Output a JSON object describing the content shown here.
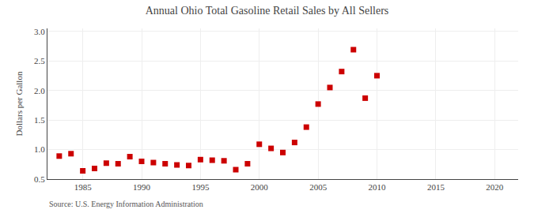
{
  "chart_data": {
    "type": "scatter",
    "title": "Annual Ohio Total Gasoline Retail Sales by All Sellers",
    "ylabel": "Dollars per Gallon",
    "annotations": [
      "Source: U.S. Energy Information Administration"
    ],
    "x": [
      1983,
      1984,
      1985,
      1986,
      1987,
      1988,
      1989,
      1990,
      1991,
      1992,
      1993,
      1994,
      1995,
      1996,
      1997,
      1998,
      1999,
      2000,
      2001,
      2002,
      2003,
      2004,
      2005,
      2006,
      2007,
      2008,
      2009,
      2010
    ],
    "values": [
      0.89,
      0.93,
      0.64,
      0.68,
      0.77,
      0.76,
      0.88,
      0.8,
      0.78,
      0.76,
      0.74,
      0.73,
      0.83,
      0.82,
      0.81,
      0.66,
      0.76,
      1.09,
      1.02,
      0.95,
      1.12,
      1.38,
      1.77,
      2.05,
      2.32,
      2.69,
      1.87,
      2.25
    ],
    "color": "#cc0000",
    "marker": "square",
    "xlim": [
      1982,
      2022
    ],
    "ylim": [
      0.5,
      3.05
    ],
    "xticks": [
      1985,
      1990,
      1995,
      2000,
      2005,
      2010,
      2015,
      2020
    ],
    "yticks": [
      0.5,
      {
        "value": 1.0,
        "label": "1.0"
      },
      1.5,
      {
        "value": 2.0,
        "label": "2.0"
      },
      2.5,
      {
        "value": 3.0,
        "label": "3.0"
      }
    ],
    "grid": true
  }
}
